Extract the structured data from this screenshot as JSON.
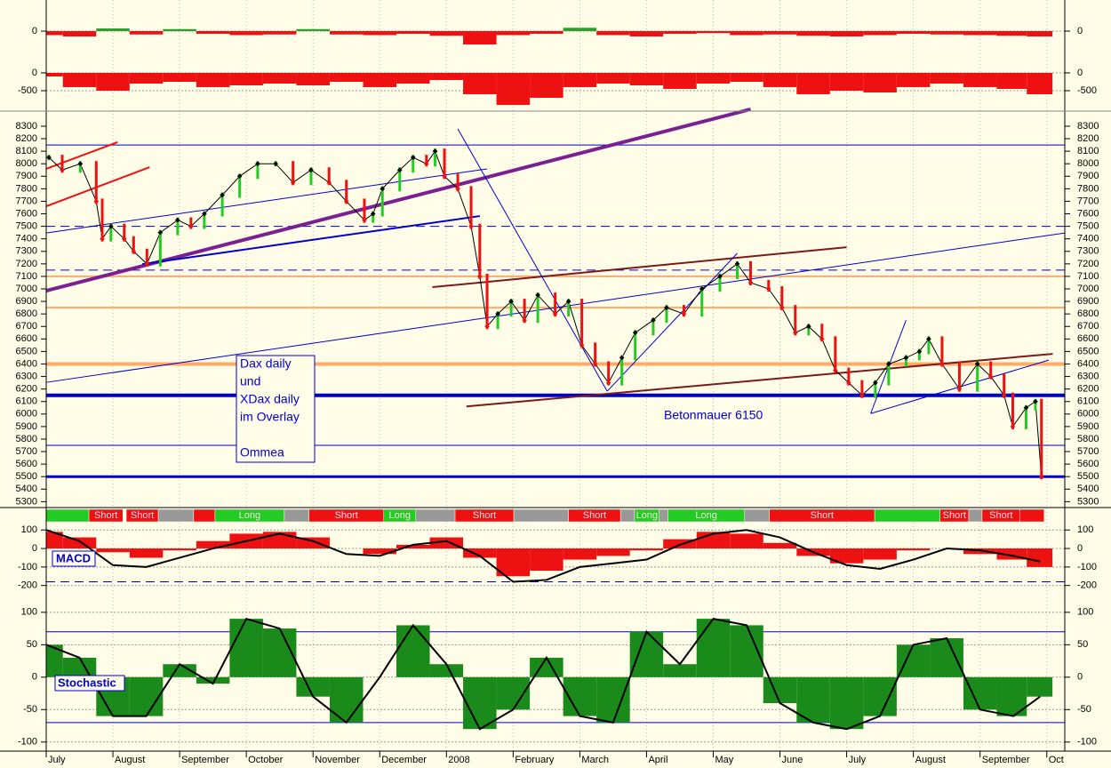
{
  "chart_data": [
    {
      "type": "bar",
      "x": [
        0,
        0.5,
        1,
        1.5,
        2,
        2.5,
        3,
        3.5,
        4,
        4.5,
        5,
        5.5,
        6,
        6.5,
        7,
        7.5,
        8,
        8.5,
        9,
        9.5,
        10,
        10.5,
        11,
        11.5,
        12,
        12.5,
        13,
        13.5,
        14,
        14.5,
        14.9
      ],
      "values": [
        -60,
        -80,
        40,
        -50,
        30,
        -40,
        -60,
        -50,
        30,
        -50,
        -60,
        -40,
        -70,
        -200,
        -60,
        -40,
        50,
        -60,
        -80,
        -40,
        -30,
        -60,
        -50,
        -70,
        -80,
        -60,
        -40,
        -50,
        -60,
        -70,
        -80
      ],
      "ylim": [
        -400,
        400
      ],
      "yticks": [
        0
      ],
      "up_color": "#2e9e2e",
      "down_color": "#ee1111"
    },
    {
      "type": "bar",
      "x": [
        0,
        0.5,
        1,
        1.5,
        2,
        2.5,
        3,
        3.5,
        4,
        4.5,
        5,
        5.5,
        6,
        6.5,
        7,
        7.5,
        8,
        8.5,
        9,
        9.5,
        10,
        10.5,
        11,
        11.5,
        12,
        12.5,
        13,
        13.5,
        14,
        14.5,
        14.9
      ],
      "values": [
        -100,
        -400,
        -500,
        -300,
        -250,
        -400,
        -350,
        -300,
        -350,
        -250,
        -400,
        -300,
        -200,
        -600,
        -900,
        -700,
        -400,
        -300,
        -350,
        -450,
        -300,
        -250,
        -400,
        -600,
        -500,
        -550,
        -400,
        -300,
        -400,
        -450,
        -600
      ],
      "ylim": [
        -950,
        425
      ],
      "yticks": [
        0,
        -500
      ],
      "up_color": "#2e9e2e",
      "down_color": "#ee1111"
    },
    {
      "type": "line",
      "x": [
        0.04,
        0.24,
        0.51,
        0.75,
        0.84,
        0.97,
        1.17,
        1.31,
        1.51,
        1.71,
        1.97,
        2.17,
        2.37,
        2.64,
        2.9,
        3.17,
        3.44,
        3.7,
        3.97,
        4.24,
        4.5,
        4.77,
        4.9,
        5.04,
        5.3,
        5.5,
        5.7,
        5.83,
        5.97,
        6.17,
        6.37,
        6.5,
        6.61,
        6.77,
        6.97,
        7.17,
        7.37,
        7.63,
        7.83,
        8.03,
        8.23,
        8.43,
        8.63,
        8.83,
        9.1,
        9.3,
        9.56,
        9.83,
        10.1,
        10.36,
        10.56,
        10.83,
        11.03,
        11.23,
        11.43,
        11.63,
        11.83,
        12.03,
        12.23,
        12.43,
        12.63,
        12.89,
        13.09,
        13.23,
        13.43,
        13.69,
        13.96,
        14.16,
        14.36,
        14.49,
        14.69,
        14.83,
        14.92
      ],
      "values": [
        8050,
        7950,
        8000,
        7700,
        7400,
        7500,
        7400,
        7300,
        7200,
        7450,
        7550,
        7500,
        7600,
        7750,
        7900,
        8000,
        8000,
        7850,
        7950,
        7850,
        7700,
        7550,
        7600,
        7800,
        7950,
        8050,
        8000,
        8100,
        7900,
        7800,
        7500,
        7100,
        6700,
        6800,
        6900,
        6750,
        6950,
        6800,
        6900,
        6550,
        6400,
        6250,
        6450,
        6650,
        6750,
        6850,
        6800,
        7000,
        7100,
        7200,
        7050,
        7000,
        6850,
        6650,
        6700,
        6600,
        6350,
        6250,
        6150,
        6250,
        6400,
        6450,
        6500,
        6600,
        6400,
        6200,
        6400,
        6300,
        6150,
        5900,
        6050,
        6100,
        5500
      ],
      "ylim": [
        5260,
        8385
      ],
      "yticks": [
        5300,
        5400,
        5500,
        5600,
        5700,
        5800,
        5900,
        6000,
        6100,
        6200,
        6300,
        6400,
        6500,
        6600,
        6700,
        6800,
        6900,
        7000,
        7100,
        7200,
        7300,
        7400,
        7500,
        7600,
        7700,
        7800,
        7900,
        8000,
        8100,
        8200,
        8300
      ],
      "xlim": [
        0,
        15.27
      ],
      "xticks": [
        {
          "value": 0,
          "label": "July"
        },
        {
          "value": 1,
          "label": "August"
        },
        {
          "value": 2,
          "label": "September"
        },
        {
          "value": 3,
          "label": "October"
        },
        {
          "value": 4,
          "label": "November"
        },
        {
          "value": 5,
          "label": "December"
        },
        {
          "value": 6,
          "label": "2008"
        },
        {
          "value": 7,
          "label": "February"
        },
        {
          "value": 8,
          "label": "March"
        },
        {
          "value": 9,
          "label": "April"
        },
        {
          "value": 10,
          "label": "May"
        },
        {
          "value": 11,
          "label": "June"
        },
        {
          "value": 12,
          "label": "July"
        },
        {
          "value": 13,
          "label": "August"
        },
        {
          "value": 14,
          "label": "September"
        },
        {
          "value": 15,
          "label": "Oct"
        }
      ],
      "color": "#000000",
      "up_color": "#22cc22",
      "down_color": "#ee1111",
      "hlines": [
        {
          "value": 8150,
          "color": "#0000cc",
          "width": 1,
          "dash": false
        },
        {
          "value": 7500,
          "color": "#0000cc",
          "width": 1,
          "dash": true
        },
        {
          "value": 7150,
          "color": "#0000cc",
          "width": 1,
          "dash": true
        },
        {
          "value": 7100,
          "color": "#ffaa66",
          "width": 2,
          "dash": false
        },
        {
          "value": 6850,
          "color": "#ffaa66",
          "width": 2,
          "dash": false
        },
        {
          "value": 6400,
          "color": "#ffaa66",
          "width": 4,
          "dash": false
        },
        {
          "value": 6150,
          "color": "#0000cc",
          "width": 4,
          "dash": false
        },
        {
          "value": 5750,
          "color": "#0000cc",
          "width": 1,
          "dash": false
        },
        {
          "value": 5500,
          "color": "#0000cc",
          "width": 3,
          "dash": false
        }
      ],
      "trendlines": [
        {
          "x": [
            0,
            10.56
          ],
          "y": [
            6985,
            8435
          ],
          "color": "#7b2090",
          "width": 4
        },
        {
          "x": [
            0,
            1.07
          ],
          "y": [
            7959,
            8172
          ],
          "color": "#ee1111",
          "width": 2
        },
        {
          "x": [
            0,
            1.55
          ],
          "y": [
            7660,
            7973
          ],
          "color": "#ee1111",
          "width": 2
        },
        {
          "x": [
            0,
            6.61
          ],
          "y": [
            7447,
            7959
          ],
          "color": "#0000cc",
          "width": 1
        },
        {
          "x": [
            1.44,
            6.5
          ],
          "y": [
            7198,
            7582
          ],
          "color": "#0000cc",
          "width": 2
        },
        {
          "x": [
            5.79,
            12.0
          ],
          "y": [
            7014,
            7333
          ],
          "color": "#7a1a1a",
          "width": 2
        },
        {
          "x": [
            6.3,
            15.09
          ],
          "y": [
            6061,
            6481
          ],
          "color": "#7a1a1a",
          "width": 2
        },
        {
          "x": [
            0,
            15.27
          ],
          "y": [
            6253,
            7447
          ],
          "color": "#0000cc",
          "width": 1
        },
        {
          "x": [
            8.41,
            10.36
          ],
          "y": [
            6182,
            7284
          ],
          "color": "#0000cc",
          "width": 1
        },
        {
          "x": [
            8.41,
            6.17
          ],
          "y": [
            6182,
            8279
          ],
          "color": "#0000cc",
          "width": 1
        },
        {
          "x": [
            12.36,
            12.89
          ],
          "y": [
            6004,
            6750
          ],
          "color": "#0000cc",
          "width": 1
        },
        {
          "x": [
            12.36,
            15.03
          ],
          "y": [
            6004,
            6431
          ],
          "color": "#0000cc",
          "width": 1
        }
      ],
      "note_lines": [
        "Dax daily",
        "und",
        "XDax daily",
        "im Overlay"
      ],
      "note_author": "Ommea",
      "annotation": "Betonmauer 6150",
      "signals": [
        {
          "start": 0,
          "end": 0.64,
          "color": "#22cc22"
        },
        {
          "start": 0.64,
          "end": 1.15,
          "color": "#ee1111",
          "label": "Short"
        },
        {
          "start": 1.2,
          "end": 1.68,
          "color": "#ee1111",
          "label": "Short"
        },
        {
          "start": 1.68,
          "end": 2.21,
          "color": "#999999"
        },
        {
          "start": 2.21,
          "end": 2.53,
          "color": "#ee1111"
        },
        {
          "start": 2.53,
          "end": 3.57,
          "color": "#22cc22",
          "label": "Long"
        },
        {
          "start": 3.57,
          "end": 3.94,
          "color": "#999999"
        },
        {
          "start": 3.94,
          "end": 5.06,
          "color": "#ee1111",
          "label": "Short"
        },
        {
          "start": 5.06,
          "end": 5.54,
          "color": "#22cc22",
          "label": "Long"
        },
        {
          "start": 5.54,
          "end": 6.13,
          "color": "#999999"
        },
        {
          "start": 6.13,
          "end": 7.01,
          "color": "#ee1111",
          "label": "Short"
        },
        {
          "start": 7.01,
          "end": 7.83,
          "color": "#999999"
        },
        {
          "start": 7.83,
          "end": 8.61,
          "color": "#ee1111",
          "label": "Short"
        },
        {
          "start": 8.61,
          "end": 8.82,
          "color": "#999999"
        },
        {
          "start": 8.82,
          "end": 9.19,
          "color": "#22cc22",
          "label": "Long"
        },
        {
          "start": 9.19,
          "end": 9.32,
          "color": "#999999"
        },
        {
          "start": 9.32,
          "end": 10.47,
          "color": "#22cc22",
          "label": "Long"
        },
        {
          "start": 10.47,
          "end": 10.84,
          "color": "#999999"
        },
        {
          "start": 10.84,
          "end": 12.42,
          "color": "#ee1111",
          "label": "Short"
        },
        {
          "start": 12.42,
          "end": 13.4,
          "color": "#22cc22"
        },
        {
          "start": 13.4,
          "end": 13.83,
          "color": "#ee1111",
          "label": "Short"
        },
        {
          "start": 13.83,
          "end": 14.03,
          "color": "#999999"
        },
        {
          "start": 14.03,
          "end": 14.6,
          "color": "#ee1111",
          "label": "Short"
        },
        {
          "start": 14.6,
          "end": 14.96,
          "color": "#ee1111"
        }
      ]
    },
    {
      "type": "bar",
      "label": "MACD",
      "x": [
        0,
        0.5,
        1,
        1.5,
        2,
        2.5,
        3,
        3.5,
        4,
        4.5,
        5,
        5.5,
        6,
        6.5,
        7,
        7.5,
        8,
        8.5,
        9,
        9.5,
        10,
        10.5,
        11,
        11.5,
        12,
        12.5,
        13,
        13.5,
        14,
        14.5,
        14.9
      ],
      "values": [
        90,
        60,
        -20,
        -50,
        -10,
        40,
        80,
        90,
        60,
        0,
        -30,
        20,
        60,
        -50,
        -150,
        -120,
        -60,
        -40,
        -10,
        50,
        90,
        80,
        30,
        -40,
        -80,
        -60,
        -10,
        0,
        -30,
        -60,
        -100
      ],
      "line_values": [
        100,
        40,
        -90,
        -100,
        -50,
        0,
        40,
        80,
        40,
        -30,
        -40,
        20,
        40,
        -40,
        -180,
        -170,
        -100,
        -80,
        -60,
        20,
        80,
        100,
        60,
        -20,
        -90,
        -110,
        -60,
        0,
        -10,
        -40,
        -70
      ],
      "ylim": [
        -312,
        130
      ],
      "yticks": [
        100,
        0,
        -100,
        -200
      ],
      "up_color": "#ee1111",
      "down_color": "#ee1111",
      "hlines": [
        {
          "value": -180,
          "color": "#0000cc",
          "width": 1,
          "dash": true
        }
      ]
    },
    {
      "type": "bar",
      "label": "Stochastic",
      "x": [
        0,
        0.5,
        1,
        1.5,
        2,
        2.5,
        3,
        3.5,
        4,
        4.5,
        5,
        5.5,
        6,
        6.5,
        7,
        7.5,
        8,
        8.5,
        9,
        9.5,
        10,
        10.5,
        11,
        11.5,
        12,
        12.5,
        13,
        13.5,
        14,
        14.5,
        14.9
      ],
      "values": [
        50,
        30,
        -60,
        -60,
        20,
        -10,
        90,
        75,
        -30,
        -70,
        0,
        80,
        20,
        -80,
        -50,
        30,
        -60,
        -70,
        70,
        20,
        90,
        80,
        -40,
        -70,
        -80,
        -60,
        50,
        60,
        -50,
        -60,
        -30
      ],
      "ylim": [
        -114,
        108
      ],
      "yticks": [
        100,
        50,
        0,
        -50,
        -100
      ],
      "up_color": "#1a8a1a",
      "down_color": "#1a8a1a",
      "hlines": [
        {
          "value": 70,
          "color": "#0000cc",
          "width": 1,
          "dash": false
        },
        {
          "value": -70,
          "color": "#0000cc",
          "width": 1,
          "dash": false
        }
      ]
    }
  ]
}
